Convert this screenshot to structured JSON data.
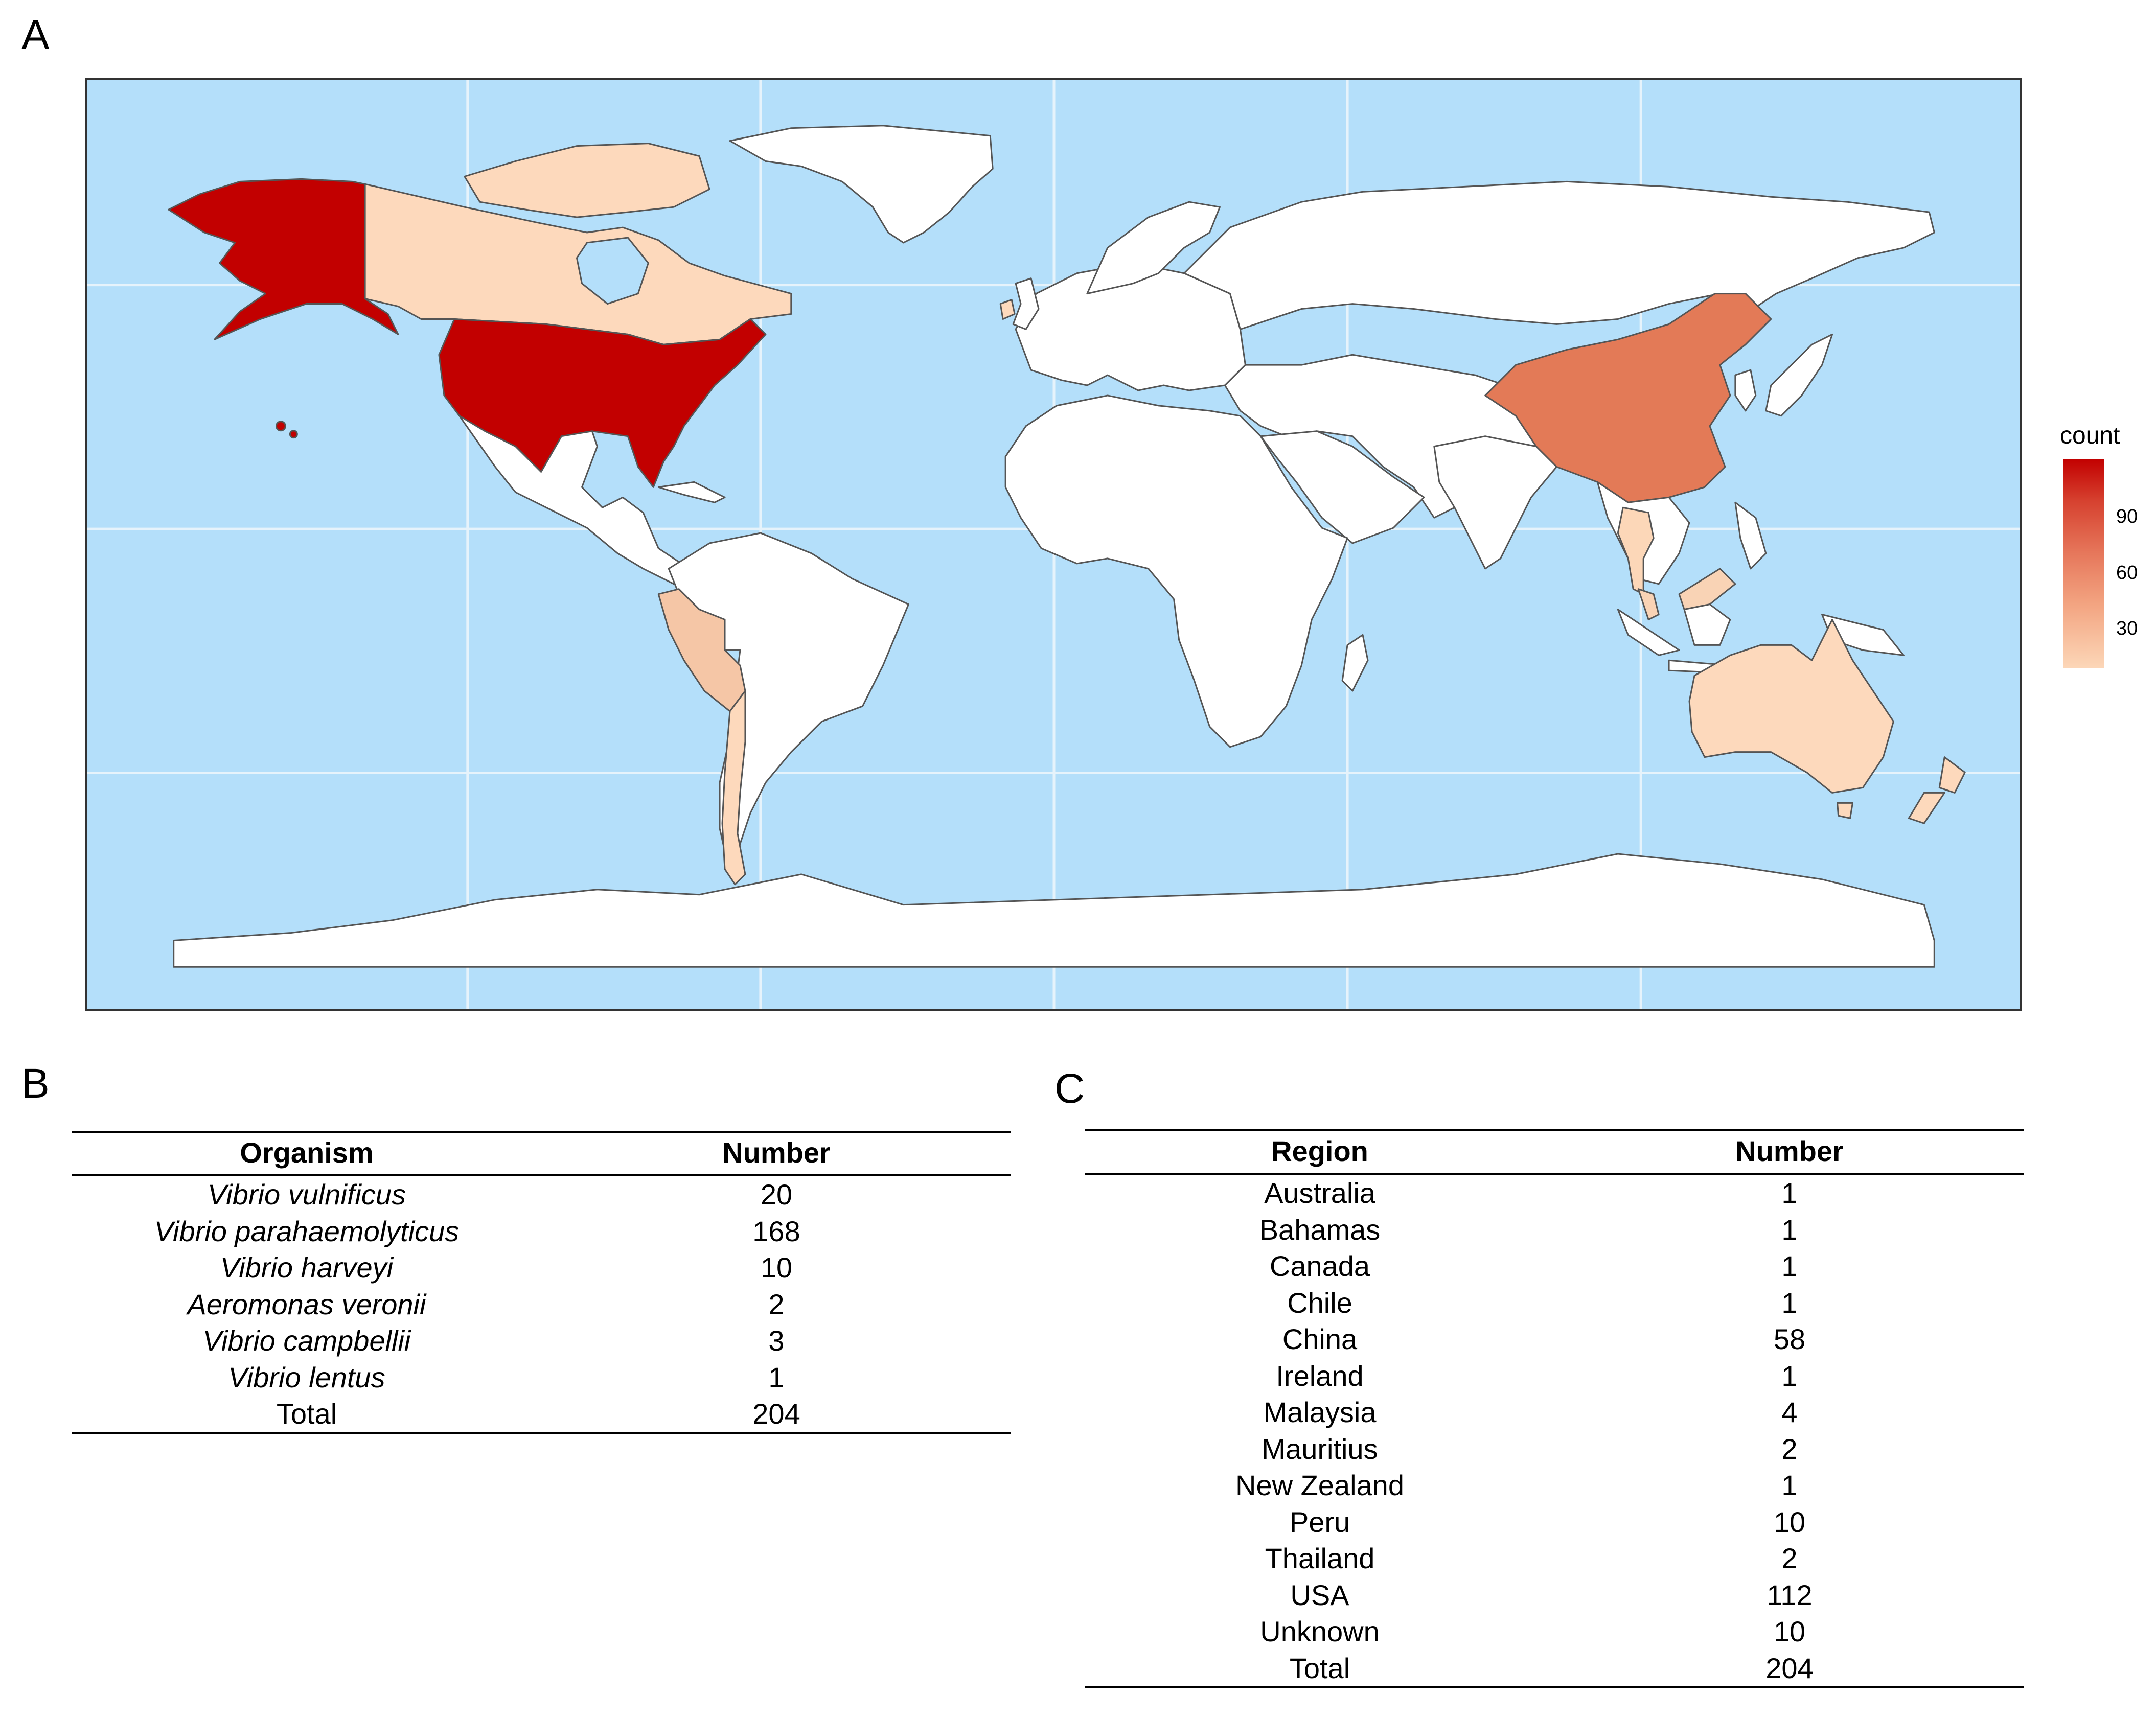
{
  "panels": {
    "a": "A",
    "b": "B",
    "c": "C"
  },
  "legend": {
    "title": "count",
    "ticks": [
      "90",
      "60",
      "30"
    ],
    "max": 112
  },
  "colors": {
    "ocean": "#b4dffa",
    "land": "#ffffff",
    "border": "#555555",
    "grid": "#e6f3fb",
    "scale_low": "#fcd7b8",
    "scale_high": "#c20000"
  },
  "map_regions": [
    {
      "name": "USA",
      "count": 112,
      "color": "#c20000"
    },
    {
      "name": "China",
      "count": 58,
      "color": "#e37a57"
    },
    {
      "name": "Peru",
      "count": 10,
      "color": "#f5c6a6"
    },
    {
      "name": "Malaysia",
      "count": 4,
      "color": "#f9d3b5"
    },
    {
      "name": "Canada",
      "count": 1,
      "color": "#fdd9bc"
    },
    {
      "name": "Australia",
      "count": 1,
      "color": "#fdd9bc"
    },
    {
      "name": "Chile",
      "count": 1,
      "color": "#fdd9bc"
    },
    {
      "name": "New Zealand",
      "count": 1,
      "color": "#fdd9bc"
    },
    {
      "name": "Ireland",
      "count": 1,
      "color": "#fdd9bc"
    },
    {
      "name": "Thailand",
      "count": 2,
      "color": "#fcd7b8"
    }
  ],
  "table_b": {
    "headers": [
      "Organism",
      "Number"
    ],
    "rows": [
      [
        "Vibrio vulnificus",
        "20"
      ],
      [
        "Vibrio parahaemolyticus",
        "168"
      ],
      [
        "Vibrio harveyi",
        "10"
      ],
      [
        "Aeromonas veronii",
        "2"
      ],
      [
        "Vibrio campbellii",
        "3"
      ],
      [
        "Vibrio lentus",
        "1"
      ],
      [
        "Total",
        "204"
      ]
    ]
  },
  "table_c": {
    "headers": [
      "Region",
      "Number"
    ],
    "rows": [
      [
        "Australia",
        "1"
      ],
      [
        "Bahamas",
        "1"
      ],
      [
        "Canada",
        "1"
      ],
      [
        "Chile",
        "1"
      ],
      [
        "China",
        "58"
      ],
      [
        "Ireland",
        "1"
      ],
      [
        "Malaysia",
        "4"
      ],
      [
        "Mauritius",
        "2"
      ],
      [
        "New Zealand",
        "1"
      ],
      [
        "Peru",
        "10"
      ],
      [
        "Thailand",
        "2"
      ],
      [
        "USA",
        "112"
      ],
      [
        "Unknown",
        "10"
      ],
      [
        "Total",
        "204"
      ]
    ]
  }
}
